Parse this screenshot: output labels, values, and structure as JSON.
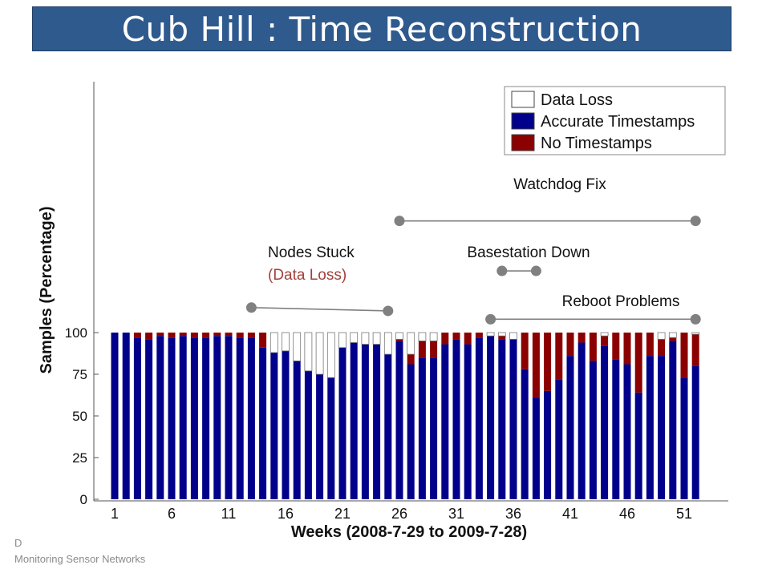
{
  "slide": {
    "title": "Cub Hill : Time Reconstruction",
    "footer_left_1": "D",
    "footer_left_2": "Monitoring Sensor Networks"
  },
  "chart_data": {
    "type": "bar",
    "stacked": true,
    "xlabel": "Weeks (2008-7-29 to 2009-7-28)",
    "ylabel": "Samples (Percentage)",
    "ylim": [
      0,
      100
    ],
    "yticks": [
      0,
      25,
      50,
      75,
      100
    ],
    "xticks": [
      1,
      6,
      11,
      16,
      21,
      26,
      31,
      36,
      41,
      46,
      51
    ],
    "legend_position": "top-right",
    "grid": false,
    "weeks": [
      1,
      2,
      3,
      4,
      5,
      6,
      7,
      8,
      9,
      10,
      11,
      12,
      13,
      14,
      15,
      16,
      17,
      18,
      19,
      20,
      21,
      22,
      23,
      24,
      25,
      26,
      27,
      28,
      29,
      30,
      31,
      32,
      33,
      34,
      35,
      36,
      37,
      38,
      39,
      40,
      41,
      42,
      43,
      44,
      45,
      46,
      47,
      48,
      49,
      50,
      51,
      52
    ],
    "series": [
      {
        "name": "Accurate Timestamps",
        "color": "#00008b",
        "values": [
          100,
          100,
          97,
          96,
          98,
          97,
          98,
          97,
          97,
          98,
          98,
          97,
          97,
          91,
          88,
          89,
          83,
          77,
          75,
          73,
          91,
          94,
          93,
          93,
          87,
          95,
          81,
          85,
          85,
          93,
          96,
          93,
          97,
          98,
          96,
          96,
          78,
          61,
          65,
          72,
          86,
          94,
          83,
          92,
          84,
          81,
          64,
          86,
          86,
          95,
          73,
          80
        ]
      },
      {
        "name": "No Timestamps",
        "color": "#8b0000",
        "values": [
          0,
          0,
          3,
          4,
          2,
          3,
          2,
          3,
          3,
          2,
          2,
          3,
          3,
          9,
          0,
          0,
          0,
          0,
          0,
          0,
          0,
          0,
          0,
          0,
          0,
          1,
          6,
          10,
          10,
          7,
          4,
          7,
          3,
          0,
          2,
          0,
          22,
          39,
          35,
          28,
          14,
          6,
          17,
          6,
          16,
          19,
          36,
          14,
          10,
          2,
          27,
          19
        ]
      },
      {
        "name": "Data Loss",
        "color": "#ffffff",
        "values": [
          0,
          0,
          0,
          0,
          0,
          0,
          0,
          0,
          0,
          0,
          0,
          0,
          0,
          0,
          12,
          11,
          17,
          23,
          25,
          27,
          9,
          6,
          7,
          7,
          13,
          4,
          13,
          5,
          5,
          0,
          0,
          0,
          0,
          2,
          2,
          4,
          0,
          0,
          0,
          0,
          0,
          0,
          0,
          2,
          0,
          0,
          0,
          0,
          4,
          3,
          0,
          1
        ]
      }
    ],
    "legend": [
      "Data Loss",
      "Accurate Timestamps",
      "No Timestamps"
    ],
    "annotations": [
      {
        "label": "Watchdog Fix",
        "start_week": 26,
        "end_week": 52,
        "level": 167
      },
      {
        "label": "Basestation Down",
        "start_week": 35,
        "end_week": 38,
        "level": 137
      },
      {
        "label": "Reboot Problems",
        "start_week": 34,
        "end_week": 52,
        "level": 108
      },
      {
        "label": "Nodes Stuck",
        "sublabel": "(Data Loss)",
        "sublabel_color": "#a0403a",
        "start_week": 13,
        "end_week": 25,
        "level": 115,
        "end_level": 113
      }
    ],
    "annotation_color": "#808080"
  }
}
